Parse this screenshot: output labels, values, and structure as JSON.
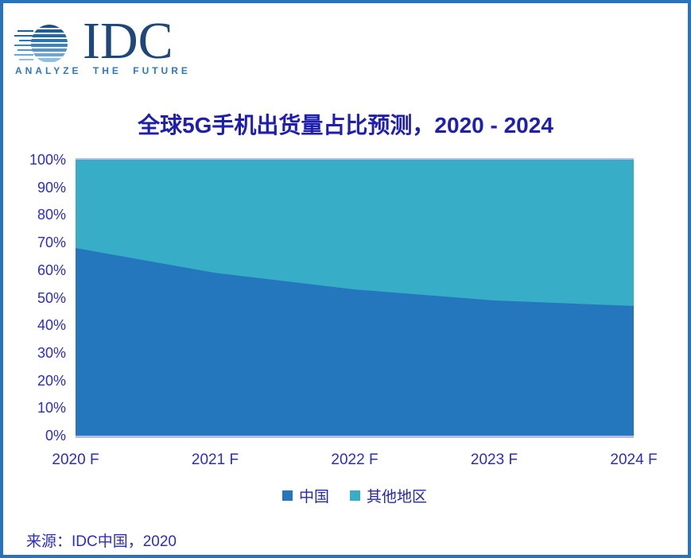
{
  "page": {
    "border_color": "#2873B9",
    "background_color": "#FFFFFF"
  },
  "logo": {
    "brand": "IDC",
    "tagline": "ANALYZE THE FUTURE",
    "brand_color": "#1E4879",
    "tagline_color": "#2E79BE"
  },
  "chart_data": {
    "type": "area",
    "stacked": true,
    "percent_stacked": true,
    "title": "全球5G手机出货量占比预测，2020 - 2024",
    "x": [
      "2020 F",
      "2021 F",
      "2022 F",
      "2023 F",
      "2024 F"
    ],
    "series": [
      {
        "name": "中国",
        "color": "#2577BD",
        "values": [
          68,
          59,
          53,
          49,
          47
        ]
      },
      {
        "name": "其他地区",
        "color": "#38ADC7",
        "values": [
          32,
          41,
          47,
          51,
          53
        ]
      }
    ],
    "ylim": [
      0,
      100
    ],
    "y_ticks": [
      "100%",
      "90%",
      "80%",
      "70%",
      "60%",
      "50%",
      "40%",
      "30%",
      "20%",
      "10%",
      "0%"
    ],
    "grid": false,
    "legend_position": "bottom",
    "axis_line_color": "#B3BAEC",
    "label_color": "#2C2CC8",
    "title_color": "#1E1EB0"
  },
  "source": {
    "text": "来源：IDC中国，2020"
  }
}
